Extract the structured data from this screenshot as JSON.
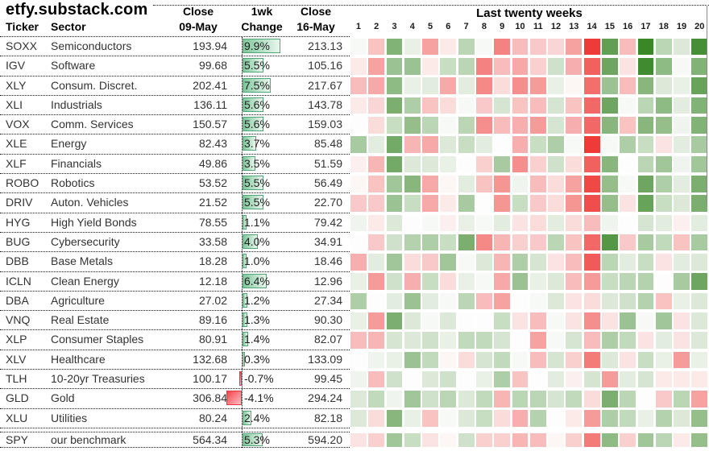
{
  "header": {
    "site": "etfy.substack.com",
    "col_ticker": "Ticker",
    "col_sector": "Sector",
    "col_close_prev": "Close\n09-May",
    "col_change": "1wk\nChange",
    "col_close_now": "Close\n16-May",
    "heatmap_title": "Last twenty weeks",
    "week_labels": [
      "1",
      "2",
      "3",
      "4",
      "5",
      "6",
      "7",
      "8",
      "9",
      "10",
      "11",
      "12",
      "13",
      "14",
      "15",
      "16",
      "17",
      "18",
      "19",
      "20"
    ]
  },
  "colors": {
    "heat_green_max": "#3a8728",
    "heat_red_max": "#ee3b38",
    "heat_neutral": "#fcfdfc",
    "bar_green_border": "#53a476",
    "bar_red_border": "#e23a40",
    "dotted_line": "#1a1a1a"
  },
  "chart_data": {
    "type": "heatmap",
    "title": "Last twenty weeks",
    "x_labels": [
      "1",
      "2",
      "3",
      "4",
      "5",
      "6",
      "7",
      "8",
      "9",
      "10",
      "11",
      "12",
      "13",
      "14",
      "15",
      "16",
      "17",
      "18",
      "19",
      "20"
    ],
    "scale_note": "Cells are unlabeled; values are color intensities estimated on a -3 (deep red) to +3 (deep green) scale. Table columns show closing prices and 1-week change with data bars (approx 4.7px per percent).",
    "rows": [
      {
        "ticker": "SOXX",
        "sector": "Semiconductors",
        "close_prev": "193.94",
        "change": "9.9%",
        "change_val": 9.9,
        "close_now": "213.13",
        "benchmark": false,
        "weeks": [
          0.1,
          -0.9,
          1.9,
          0.3,
          -1.4,
          -0.3,
          1.0,
          0.1,
          -1.9,
          -1.0,
          -0.8,
          -0.6,
          -1.4,
          -3.0,
          2.4,
          -1.0,
          3.0,
          1.0,
          0.5,
          2.8
        ]
      },
      {
        "ticker": "IGV",
        "sector": "Software",
        "close_prev": "99.68",
        "change": "5.5%",
        "change_val": 5.5,
        "close_now": "105.16",
        "benchmark": false,
        "weeks": [
          -0.3,
          -1.4,
          1.5,
          1.5,
          -0.3,
          0.8,
          1.0,
          -1.9,
          -1.0,
          -1.3,
          -0.7,
          0.7,
          -1.2,
          -2.4,
          2.2,
          -0.4,
          2.9,
          1.7,
          0.1,
          1.9
        ]
      },
      {
        "ticker": "XLY",
        "sector": "Consum. Discret.",
        "close_prev": "202.41",
        "change": "7.5%",
        "change_val": 7.5,
        "close_now": "217.67",
        "benchmark": false,
        "weeks": [
          -1.0,
          -1.3,
          1.7,
          0.3,
          0.4,
          -1.3,
          0.4,
          -1.8,
          -0.5,
          -1.7,
          -1.5,
          0.3,
          -0.1,
          -2.2,
          1.5,
          -1.0,
          1.8,
          0.5,
          0.3,
          2.3
        ]
      },
      {
        "ticker": "XLI",
        "sector": "Industrials",
        "close_prev": "136.11",
        "change": "5.6%",
        "change_val": 5.6,
        "close_now": "143.78",
        "benchmark": false,
        "weeks": [
          -0.3,
          -0.6,
          2.0,
          1.2,
          -0.9,
          -0.5,
          0.1,
          -0.8,
          0.6,
          -0.9,
          -1.0,
          0.6,
          -0.9,
          -2.3,
          2.2,
          0.1,
          1.0,
          1.7,
          0.4,
          1.9
        ]
      },
      {
        "ticker": "VOX",
        "sector": "Comm. Services",
        "close_prev": "150.57",
        "change": "5.6%",
        "change_val": 5.6,
        "close_now": "159.03",
        "benchmark": false,
        "weeks": [
          0.0,
          -0.5,
          0.8,
          1.6,
          1.0,
          0.1,
          1.0,
          -1.7,
          -1.0,
          -1.2,
          -1.5,
          0.6,
          -1.2,
          -2.3,
          1.8,
          -0.9,
          1.8,
          1.6,
          0.2,
          1.9
        ]
      },
      {
        "ticker": "XLE",
        "sector": "Energy",
        "close_prev": "82.43",
        "change": "3.7%",
        "change_val": 3.7,
        "close_now": "85.48",
        "benchmark": false,
        "weeks": [
          1.3,
          0.4,
          2.1,
          -1.1,
          -1.3,
          0.5,
          0.8,
          0.4,
          0.0,
          -1.2,
          0.8,
          1.2,
          0.1,
          -3.0,
          0.1,
          1.2,
          0.8,
          -0.4,
          0.4,
          1.3
        ]
      },
      {
        "ticker": "XLF",
        "sector": "Financials",
        "close_prev": "49.86",
        "change": "3.5%",
        "change_val": 3.5,
        "close_now": "51.59",
        "benchmark": false,
        "weeks": [
          -0.2,
          -1.1,
          2.1,
          0.5,
          0.5,
          0.3,
          0.0,
          -0.7,
          1.3,
          -1.7,
          -0.7,
          0.7,
          -0.5,
          -2.4,
          1.8,
          0.0,
          1.0,
          1.4,
          0.2,
          1.4
        ]
      },
      {
        "ticker": "ROBO",
        "sector": "Robotics",
        "close_prev": "53.52",
        "change": "5.5%",
        "change_val": 5.5,
        "close_now": "56.49",
        "benchmark": false,
        "weeks": [
          -0.1,
          -0.9,
          1.4,
          1.8,
          -1.3,
          -0.1,
          0.4,
          -0.9,
          -1.6,
          0.2,
          -1.0,
          -0.5,
          -1.4,
          -2.8,
          1.6,
          0.1,
          2.2,
          1.2,
          0.4,
          2.0
        ]
      },
      {
        "ticker": "DRIV",
        "sector": "Auton. Vehicles",
        "close_prev": "21.52",
        "change": "5.5%",
        "change_val": 5.5,
        "close_now": "22.70",
        "benchmark": false,
        "weeks": [
          -0.8,
          -0.8,
          1.5,
          0.8,
          -1.3,
          -0.3,
          1.3,
          0.0,
          -1.6,
          0.8,
          -0.8,
          -0.5,
          -1.6,
          -2.7,
          1.6,
          -0.4,
          2.3,
          0.8,
          0.5,
          2.0
        ]
      },
      {
        "ticker": "HYG",
        "sector": "High Yield Bonds",
        "close_prev": "78.55",
        "change": "1.1%",
        "change_val": 1.1,
        "close_now": "79.42",
        "benchmark": false,
        "weeks": [
          0.2,
          -0.3,
          0.5,
          0.0,
          0.1,
          -0.2,
          0.3,
          0.1,
          0.4,
          -0.4,
          -0.5,
          0.4,
          -0.5,
          -1.0,
          0.2,
          0.0,
          0.6,
          0.4,
          -0.2,
          0.4
        ]
      },
      {
        "ticker": "BUG",
        "sector": "Cybersecurity",
        "close_prev": "33.58",
        "change": "4.0%",
        "change_val": 4.0,
        "close_now": "34.91",
        "benchmark": false,
        "weeks": [
          0.0,
          -0.8,
          0.7,
          1.1,
          1.2,
          0.8,
          2.0,
          -1.8,
          -1.1,
          -0.7,
          -0.8,
          1.0,
          -0.9,
          -2.3,
          2.6,
          -0.8,
          1.3,
          0.9,
          -0.9,
          1.3
        ]
      },
      {
        "ticker": "DBB",
        "sector": "Base Metals",
        "close_prev": "18.28",
        "change": "1.0%",
        "change_val": 1.0,
        "close_now": "18.46",
        "benchmark": false,
        "weeks": [
          -1.2,
          0.4,
          1.4,
          -0.5,
          -0.8,
          1.4,
          0.1,
          0.5,
          -1.1,
          1.2,
          0.6,
          -0.4,
          -1.0,
          -2.5,
          1.0,
          0.4,
          0.8,
          -0.4,
          0.4,
          0.5
        ]
      },
      {
        "ticker": "ICLN",
        "sector": "Clean Energy",
        "close_prev": "12.18",
        "change": "6.4%",
        "change_val": 6.4,
        "close_now": "12.96",
        "benchmark": false,
        "weeks": [
          0.3,
          -1.5,
          0.7,
          -1.2,
          0.8,
          -0.5,
          0.3,
          0.1,
          -1.3,
          1.5,
          0.3,
          0.5,
          -1.0,
          -1.5,
          0.8,
          1.0,
          1.1,
          0.0,
          1.3,
          2.2
        ]
      },
      {
        "ticker": "DBA",
        "sector": "Agriculture",
        "close_prev": "27.02",
        "change": "1.2%",
        "change_val": 1.2,
        "close_now": "27.34",
        "benchmark": false,
        "weeks": [
          1.2,
          0.0,
          0.4,
          1.5,
          0.4,
          0.1,
          1.0,
          -1.0,
          -1.4,
          0.0,
          0.1,
          0.5,
          -0.4,
          -0.5,
          0.5,
          0.7,
          1.1,
          -0.9,
          0.3,
          0.5
        ]
      },
      {
        "ticker": "VNQ",
        "sector": "Real Estate",
        "close_prev": "89.16",
        "change": "1.3%",
        "change_val": 1.3,
        "close_now": "90.30",
        "benchmark": false,
        "weeks": [
          0.3,
          -1.5,
          2.0,
          0.5,
          0.1,
          0.5,
          0.0,
          0.0,
          0.8,
          -0.4,
          -1.0,
          0.1,
          -0.4,
          -1.7,
          -0.4,
          1.5,
          0.1,
          1.4,
          -0.4,
          0.5
        ]
      },
      {
        "ticker": "XLP",
        "sector": "Consumer Staples",
        "close_prev": "80.91",
        "change": "1.4%",
        "change_val": 1.4,
        "close_now": "82.07",
        "benchmark": false,
        "weeks": [
          -1.0,
          -1.1,
          0.6,
          0.5,
          0.7,
          0.3,
          0.9,
          0.9,
          0.6,
          0.0,
          -1.4,
          0.1,
          0.6,
          -1.0,
          1.2,
          0.9,
          -0.4,
          0.4,
          -0.4,
          0.5
        ]
      },
      {
        "ticker": "XLV",
        "sector": "Healthcare",
        "close_prev": "132.68",
        "change": "0.3%",
        "change_val": 0.3,
        "close_now": "133.09",
        "benchmark": false,
        "weeks": [
          0.0,
          0.2,
          0.3,
          1.5,
          0.9,
          -0.1,
          -0.5,
          0.6,
          0.9,
          0.1,
          -1.0,
          0.6,
          -0.7,
          -2.0,
          0.5,
          -0.4,
          0.8,
          0.3,
          -1.5,
          0.3
        ]
      },
      {
        "ticker": "TLH",
        "sector": "10-20yr Treasuries",
        "close_prev": "100.17",
        "change": "-0.7%",
        "change_val": -0.7,
        "close_now": "99.45",
        "benchmark": false,
        "weeks": [
          0.2,
          -1.0,
          0.7,
          0.0,
          0.5,
          0.7,
          0.0,
          0.3,
          1.2,
          -0.9,
          0.0,
          0.4,
          -0.2,
          0.6,
          -1.5,
          0.4,
          0.6,
          -0.3,
          -0.3,
          -0.3
        ]
      },
      {
        "ticker": "GLD",
        "sector": "Gold",
        "close_prev": "306.84",
        "change": "-4.1%",
        "change_val": -4.1,
        "close_now": "294.24",
        "benchmark": false,
        "weeks": [
          0.5,
          0.9,
          0.2,
          1.4,
          0.7,
          1.0,
          0.5,
          0.9,
          -1.1,
          1.0,
          1.0,
          0.6,
          0.9,
          -0.5,
          2.0,
          1.0,
          0.0,
          -0.8,
          1.0,
          -1.4
        ]
      },
      {
        "ticker": "XLU",
        "sector": "Utilities",
        "close_prev": "80.24",
        "change": "2.4%",
        "change_val": 2.4,
        "close_now": "82.18",
        "benchmark": false,
        "weeks": [
          0.5,
          -0.5,
          1.8,
          0.3,
          -0.9,
          0.1,
          0.5,
          0.8,
          -0.5,
          -1.2,
          1.1,
          0.0,
          -0.3,
          -1.5,
          1.2,
          0.9,
          0.3,
          1.1,
          0.5,
          1.6
        ]
      },
      {
        "ticker": "SPY",
        "sector": "our benchmark",
        "close_prev": "564.34",
        "change": "5.3%",
        "change_val": 5.3,
        "close_now": "594.20",
        "benchmark": true,
        "weeks": [
          -0.4,
          -0.7,
          1.4,
          0.8,
          -0.4,
          -0.1,
          0.7,
          -0.7,
          -0.7,
          -1.1,
          -1.0,
          -0.1,
          -0.7,
          -2.0,
          1.7,
          -0.7,
          1.4,
          1.0,
          -0.3,
          1.6
        ]
      }
    ]
  }
}
